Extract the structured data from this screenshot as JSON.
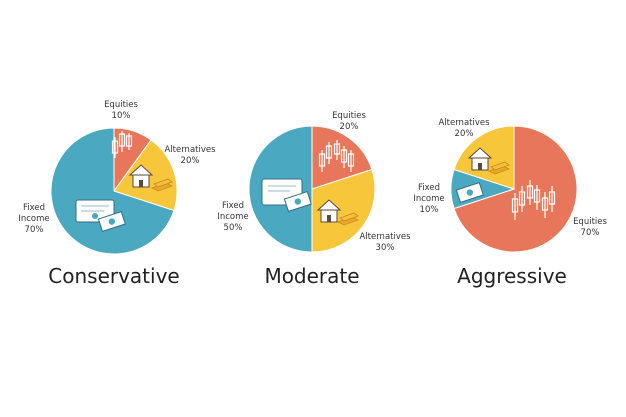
{
  "chart_data": [
    {
      "type": "pie",
      "title": "Conservative",
      "slices": [
        {
          "name": "Equities",
          "value": 10,
          "label": "10%",
          "color": "#E8765A",
          "icon": "candlestick-icon"
        },
        {
          "name": "Alternatives",
          "value": 20,
          "label": "20%",
          "color": "#F7C63B",
          "icon": "house-gold-icon"
        },
        {
          "name": "Fixed Income",
          "value": 70,
          "label": "70%",
          "color": "#4AA8C0",
          "icon": "certificate-money-icon"
        }
      ]
    },
    {
      "type": "pie",
      "title": "Moderate",
      "slices": [
        {
          "name": "Equities",
          "value": 20,
          "label": "20%",
          "color": "#E8765A",
          "icon": "candlestick-icon"
        },
        {
          "name": "Alternatives",
          "value": 30,
          "label": "30%",
          "color": "#F7C63B",
          "icon": "house-gold-icon"
        },
        {
          "name": "Fixed Income",
          "value": 50,
          "label": "50%",
          "color": "#4AA8C0",
          "icon": "certificate-money-icon"
        }
      ]
    },
    {
      "type": "pie",
      "title": "Aggressive",
      "slices": [
        {
          "name": "Equities",
          "value": 70,
          "label": "70%",
          "color": "#E8765A",
          "icon": "candlestick-icon"
        },
        {
          "name": "Fixed Income",
          "value": 10,
          "label": "10%",
          "color": "#4AA8C0",
          "icon": "money-icon"
        },
        {
          "name": "Alternatives",
          "value": 20,
          "label": "20%",
          "color": "#F7C63B",
          "icon": "house-gold-icon"
        }
      ]
    }
  ]
}
